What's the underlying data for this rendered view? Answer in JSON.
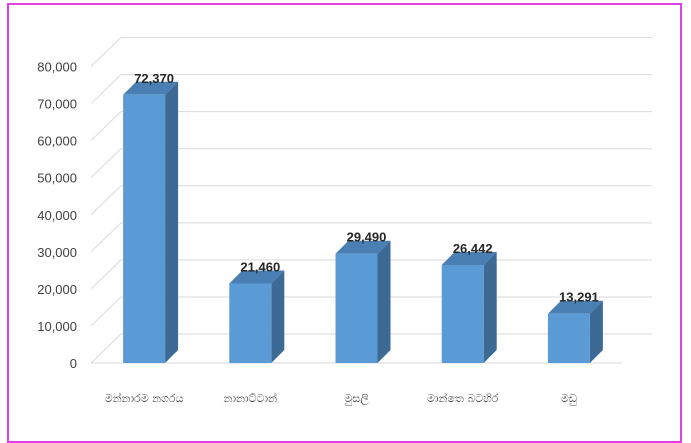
{
  "chart_data": {
    "type": "bar",
    "categories": [
      "මන්නාරම නගරය",
      "නානාට්ටාන්",
      "මුසලි",
      "මාන්තෙ බටහිර",
      "මඩු"
    ],
    "values": [
      72370,
      21460,
      29490,
      26442,
      13291
    ],
    "data_labels": [
      "72,370",
      "21,460",
      "29,490",
      "26,442",
      "13,291"
    ],
    "y_ticks": [
      "0",
      "10,000",
      "20,000",
      "30,000",
      "40,000",
      "50,000",
      "60,000",
      "70,000",
      "80,000"
    ],
    "ylim": [
      0,
      80000
    ],
    "title": "",
    "xlabel": "",
    "ylabel": "",
    "grid": true,
    "style": "3d-column",
    "colors": {
      "bar_front": "#5b9bd5",
      "bar_side": "#3c6a95",
      "bar_top": "#4a7fb3",
      "grid": "#d9d9d9",
      "frame_border": "#e040e8"
    }
  }
}
